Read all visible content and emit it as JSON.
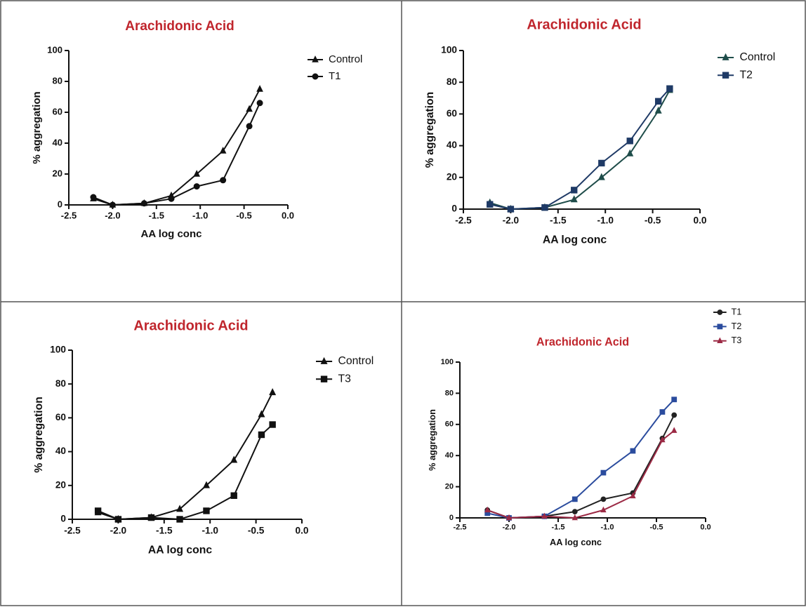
{
  "chart_data": [
    {
      "type": "line",
      "title": "Arachidonic Acid",
      "xlabel": "AA log conc",
      "ylabel": "% aggregation",
      "x": [
        -2.22,
        -2.0,
        -1.64,
        -1.33,
        -1.04,
        -0.74,
        -0.44,
        -0.32
      ],
      "series": [
        {
          "name": "Control",
          "color": "#111111",
          "marker": "triangle",
          "values": [
            4,
            0,
            1,
            6,
            20,
            35,
            62,
            75
          ]
        },
        {
          "name": "T1",
          "color": "#111111",
          "marker": "circle",
          "values": [
            5,
            0,
            1,
            4,
            12,
            16,
            51,
            66
          ]
        }
      ],
      "xlim": [
        -2.5,
        0
      ],
      "ylim": [
        0,
        100
      ],
      "xticks": [
        {
          "value": -2.5,
          "label": "-2.5"
        },
        {
          "value": -2,
          "label": "-2.0"
        },
        {
          "value": -1.5,
          "label": "-1.5"
        },
        {
          "value": -1,
          "label": "-1.0"
        },
        {
          "value": -0.5,
          "label": "-0.5"
        },
        {
          "value": 0,
          "label": "0.0"
        }
      ],
      "yticks": [
        0,
        20,
        40,
        60,
        80,
        100
      ]
    },
    {
      "type": "line",
      "title": "Arachidonic Acid",
      "xlabel": "AA log conc",
      "ylabel": "% aggregation",
      "x": [
        -2.22,
        -2.0,
        -1.64,
        -1.33,
        -1.04,
        -0.74,
        -0.44,
        -0.32
      ],
      "series": [
        {
          "name": "Control",
          "color": "#1f4d4a",
          "marker": "triangle",
          "values": [
            4,
            0,
            1,
            6,
            20,
            35,
            62,
            75
          ]
        },
        {
          "name": "T2",
          "color": "#1f3a66",
          "marker": "square",
          "values": [
            3,
            0,
            1,
            12,
            29,
            43,
            68,
            76
          ]
        }
      ],
      "xlim": [
        -2.5,
        0
      ],
      "ylim": [
        0,
        100
      ],
      "xticks": [
        {
          "value": -2.5,
          "label": "-2.5"
        },
        {
          "value": -2,
          "label": "-2.0"
        },
        {
          "value": -1.5,
          "label": "-1.5"
        },
        {
          "value": -1,
          "label": "-1.0"
        },
        {
          "value": -0.5,
          "label": "-0.5"
        },
        {
          "value": 0,
          "label": "0.0"
        }
      ],
      "yticks": [
        0,
        20,
        40,
        60,
        80,
        100
      ]
    },
    {
      "type": "line",
      "title": "Arachidonic Acid",
      "xlabel": "AA log conc",
      "ylabel": "% aggregation",
      "x": [
        -2.22,
        -2.0,
        -1.64,
        -1.33,
        -1.04,
        -0.74,
        -0.44,
        -0.32
      ],
      "series": [
        {
          "name": "Control",
          "color": "#111111",
          "marker": "triangle",
          "values": [
            4,
            0,
            1,
            6,
            20,
            35,
            62,
            75
          ]
        },
        {
          "name": "T3",
          "color": "#111111",
          "marker": "square",
          "values": [
            5,
            0,
            1,
            0,
            5,
            14,
            50,
            56
          ]
        }
      ],
      "xlim": [
        -2.5,
        0
      ],
      "ylim": [
        0,
        100
      ],
      "xticks": [
        {
          "value": -2.5,
          "label": "-2.5"
        },
        {
          "value": -2,
          "label": "-2.0"
        },
        {
          "value": -1.5,
          "label": "-1.5"
        },
        {
          "value": -1,
          "label": "-1.0"
        },
        {
          "value": -0.5,
          "label": "-0.5"
        },
        {
          "value": 0,
          "label": "0.0"
        }
      ],
      "yticks": [
        0,
        20,
        40,
        60,
        80,
        100
      ]
    },
    {
      "type": "line",
      "title": "Arachidonic Acid",
      "xlabel": "AA log conc",
      "ylabel": "% aggregation",
      "x": [
        -2.22,
        -2.0,
        -1.64,
        -1.33,
        -1.04,
        -0.74,
        -0.44,
        -0.32
      ],
      "series": [
        {
          "name": "T1",
          "color": "#222222",
          "marker": "circle",
          "values": [
            5,
            0,
            1,
            4,
            12,
            16,
            51,
            66
          ]
        },
        {
          "name": "T2",
          "color": "#2b4c9e",
          "marker": "square",
          "values": [
            3,
            0,
            1,
            12,
            29,
            43,
            68,
            76
          ]
        },
        {
          "name": "T3",
          "color": "#9c2a45",
          "marker": "triangle",
          "values": [
            5,
            0,
            1,
            0,
            5,
            14,
            50,
            56
          ]
        }
      ],
      "xlim": [
        -2.5,
        0
      ],
      "ylim": [
        0,
        100
      ],
      "xticks": [
        {
          "value": -2.5,
          "label": "-2.5"
        },
        {
          "value": -2,
          "label": "-2.0"
        },
        {
          "value": -1.5,
          "label": "-1.5"
        },
        {
          "value": -1,
          "label": "-1.0"
        },
        {
          "value": -0.5,
          "label": "-0.5"
        },
        {
          "value": 0,
          "label": "0.0"
        }
      ],
      "yticks": [
        0,
        20,
        40,
        60,
        80,
        100
      ]
    }
  ]
}
